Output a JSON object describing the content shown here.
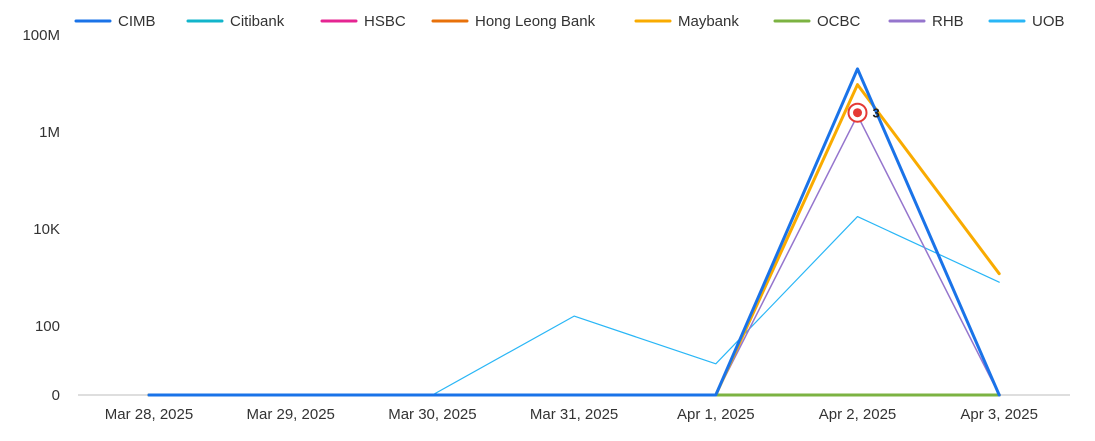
{
  "chart_data": {
    "type": "line",
    "title": "",
    "xlabel": "",
    "ylabel": "",
    "y_scale": "symlog",
    "x": [
      "Mar 28, 2025",
      "Mar 29, 2025",
      "Mar 30, 2025",
      "Mar 31, 2025",
      "Apr 1, 2025",
      "Apr 2, 2025",
      "Apr 3, 2025"
    ],
    "y_ticks": [
      {
        "value": 0,
        "label": "0"
      },
      {
        "value": 100,
        "label": "100"
      },
      {
        "value": 10000,
        "label": "10K"
      },
      {
        "value": 1000000,
        "label": "1M"
      },
      {
        "value": 100000000,
        "label": "100M"
      }
    ],
    "grid": false,
    "legend_position": "top",
    "series": [
      {
        "name": "CIMB",
        "color": "#1a73e8",
        "stroke": 3,
        "values": [
          0,
          0,
          0,
          0,
          0,
          20000000,
          0
        ]
      },
      {
        "name": "Citibank",
        "color": "#12b5cb",
        "stroke": 3,
        "values": [
          0,
          0,
          0,
          0,
          0,
          0,
          0
        ]
      },
      {
        "name": "HSBC",
        "color": "#e52592",
        "stroke": 3,
        "values": [
          0,
          0,
          0,
          0,
          0,
          0,
          0
        ]
      },
      {
        "name": "Hong Leong Bank",
        "color": "#e8710a",
        "stroke": 3,
        "values": [
          0,
          0,
          0,
          0,
          0,
          0,
          0
        ]
      },
      {
        "name": "Maybank",
        "color": "#f9ab00",
        "stroke": 3,
        "values": [
          0,
          0,
          0,
          0,
          0,
          9500000,
          1200
        ]
      },
      {
        "name": "OCBC",
        "color": "#7cb342",
        "stroke": 3,
        "values": [
          0,
          0,
          0,
          0,
          0,
          0,
          0
        ]
      },
      {
        "name": "RHB",
        "color": "#9575cd",
        "stroke": 1.5,
        "values": [
          0,
          0,
          0,
          0,
          0,
          2200000,
          0
        ]
      },
      {
        "name": "UOB",
        "color": "#29b6f6",
        "stroke": 1.2,
        "values": [
          0,
          0,
          0,
          160,
          8,
          18000,
          800
        ]
      }
    ],
    "annotation": {
      "x": "Apr 2, 2025",
      "value": 2500000,
      "label": "3",
      "color": "#e53935"
    }
  }
}
